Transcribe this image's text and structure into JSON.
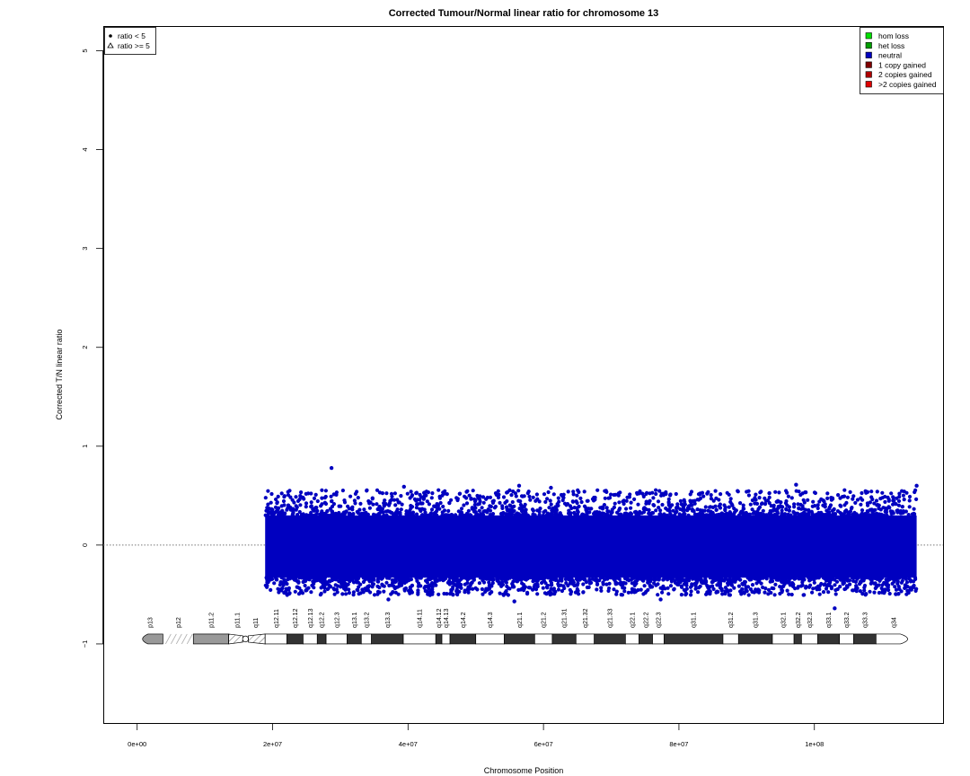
{
  "chart_data": {
    "type": "scatter",
    "title": "Corrected Tumour/Normal linear ratio for chromosome  13",
    "xlabel": "Chromosome Position",
    "ylabel": "Corrected T/N linear ratio",
    "xlim": [
      -5000000,
      119000000
    ],
    "ylim": [
      -1.8,
      5.25
    ],
    "x_ticks": [
      {
        "value": 0,
        "label": "0e+00"
      },
      {
        "value": 20000000,
        "label": "2e+07"
      },
      {
        "value": 40000000,
        "label": "4e+07"
      },
      {
        "value": 60000000,
        "label": "6e+07"
      },
      {
        "value": 80000000,
        "label": "8e+07"
      },
      {
        "value": 100000000,
        "label": "1e+08"
      }
    ],
    "y_ticks": [
      {
        "value": -1,
        "label": "−1"
      },
      {
        "value": 0,
        "label": "0"
      },
      {
        "value": 1,
        "label": "1"
      },
      {
        "value": 2,
        "label": "2"
      },
      {
        "value": 3,
        "label": "3"
      },
      {
        "value": 4,
        "label": "4"
      },
      {
        "value": 5,
        "label": "5"
      }
    ],
    "reference_line": 0,
    "series": [
      {
        "name": "neutral",
        "color": "#0000c0",
        "x_range": [
          18900000,
          115100000
        ],
        "typical_range": [
          -0.33,
          0.3
        ],
        "extreme_range": [
          -0.55,
          0.62
        ],
        "outliers": [
          {
            "x": 28700000,
            "y": 0.78
          },
          {
            "x": 39400000,
            "y": 0.59
          },
          {
            "x": 56400000,
            "y": 0.6
          },
          {
            "x": 61100000,
            "y": 0.58
          },
          {
            "x": 97300000,
            "y": 0.61
          },
          {
            "x": 115100000,
            "y": 0.6
          },
          {
            "x": 103000000,
            "y": -0.64
          },
          {
            "x": 55700000,
            "y": -0.57
          },
          {
            "x": 37100000,
            "y": -0.55
          },
          {
            "x": 77300000,
            "y": -0.55
          }
        ]
      }
    ],
    "legend_shape": {
      "position": "top-left",
      "items": [
        {
          "label": "ratio < 5",
          "symbol": "filled-circle"
        },
        {
          "label": "ratio >= 5",
          "symbol": "open-triangle"
        }
      ]
    },
    "legend_state": {
      "position": "top-right",
      "items": [
        {
          "label": "hom loss",
          "color": "#00e000"
        },
        {
          "label": "het loss",
          "color": "#00a000"
        },
        {
          "label": "neutral",
          "color": "#0000c0"
        },
        {
          "label": "1 copy gained",
          "color": "#800000"
        },
        {
          "label": "2 copies gained",
          "color": "#b00000"
        },
        {
          "label": ">2 copies gained",
          "color": "#e00000"
        }
      ]
    },
    "ideogram": {
      "y": -0.95,
      "bands": [
        {
          "name": "p13",
          "start": 0,
          "end": 3800000,
          "stain": "gvar"
        },
        {
          "name": "p12",
          "start": 3800000,
          "end": 8300000,
          "stain": "stalk"
        },
        {
          "name": "p11.2",
          "start": 8300000,
          "end": 13500000,
          "stain": "gvar"
        },
        {
          "name": "p11.1",
          "start": 13500000,
          "end": 16000000,
          "stain": "acen"
        },
        {
          "name": "q11",
          "start": 16000000,
          "end": 18900000,
          "stain": "acen"
        },
        {
          "name": "q12.11",
          "start": 18900000,
          "end": 22100000,
          "stain": "gneg"
        },
        {
          "name": "q12.12",
          "start": 22100000,
          "end": 24500000,
          "stain": "gpos"
        },
        {
          "name": "q12.13",
          "start": 24500000,
          "end": 26600000,
          "stain": "gneg"
        },
        {
          "name": "q12.2",
          "start": 26600000,
          "end": 27900000,
          "stain": "gpos"
        },
        {
          "name": "q12.3",
          "start": 27900000,
          "end": 31000000,
          "stain": "gneg"
        },
        {
          "name": "q13.1",
          "start": 31000000,
          "end": 33100000,
          "stain": "gpos"
        },
        {
          "name": "q13.2",
          "start": 33100000,
          "end": 34600000,
          "stain": "gneg"
        },
        {
          "name": "q13.3",
          "start": 34600000,
          "end": 39300000,
          "stain": "gpos"
        },
        {
          "name": "q14.11",
          "start": 39300000,
          "end": 44100000,
          "stain": "gneg"
        },
        {
          "name": "q14.12",
          "start": 44100000,
          "end": 45000000,
          "stain": "gpos"
        },
        {
          "name": "q14.13",
          "start": 45000000,
          "end": 46200000,
          "stain": "gneg"
        },
        {
          "name": "q14.2",
          "start": 46200000,
          "end": 50000000,
          "stain": "gpos"
        },
        {
          "name": "q14.3",
          "start": 50000000,
          "end": 54200000,
          "stain": "gneg"
        },
        {
          "name": "q21.1",
          "start": 54200000,
          "end": 58700000,
          "stain": "gpos"
        },
        {
          "name": "q21.2",
          "start": 58700000,
          "end": 61300000,
          "stain": "gneg"
        },
        {
          "name": "q21.31",
          "start": 61300000,
          "end": 64800000,
          "stain": "gpos"
        },
        {
          "name": "q21.32",
          "start": 64800000,
          "end": 67500000,
          "stain": "gneg"
        },
        {
          "name": "q21.33",
          "start": 67500000,
          "end": 72100000,
          "stain": "gpos"
        },
        {
          "name": "q22.1",
          "start": 72100000,
          "end": 74100000,
          "stain": "gneg"
        },
        {
          "name": "q22.2",
          "start": 74100000,
          "end": 76100000,
          "stain": "gpos"
        },
        {
          "name": "q22.3",
          "start": 76100000,
          "end": 77800000,
          "stain": "gneg"
        },
        {
          "name": "q31.1",
          "start": 77800000,
          "end": 86500000,
          "stain": "gpos"
        },
        {
          "name": "q31.2",
          "start": 86500000,
          "end": 88800000,
          "stain": "gneg"
        },
        {
          "name": "q31.3",
          "start": 88800000,
          "end": 93800000,
          "stain": "gpos"
        },
        {
          "name": "q32.1",
          "start": 93800000,
          "end": 97000000,
          "stain": "gneg"
        },
        {
          "name": "q32.2",
          "start": 97000000,
          "end": 98100000,
          "stain": "gpos"
        },
        {
          "name": "q32.3",
          "start": 98100000,
          "end": 100500000,
          "stain": "gneg"
        },
        {
          "name": "q33.1",
          "start": 100500000,
          "end": 103700000,
          "stain": "gpos"
        },
        {
          "name": "q33.2",
          "start": 103700000,
          "end": 105800000,
          "stain": "gneg"
        },
        {
          "name": "q33.3",
          "start": 105800000,
          "end": 109100000,
          "stain": "gpos"
        },
        {
          "name": "q34",
          "start": 109100000,
          "end": 114300000,
          "stain": "gneg"
        }
      ]
    }
  }
}
